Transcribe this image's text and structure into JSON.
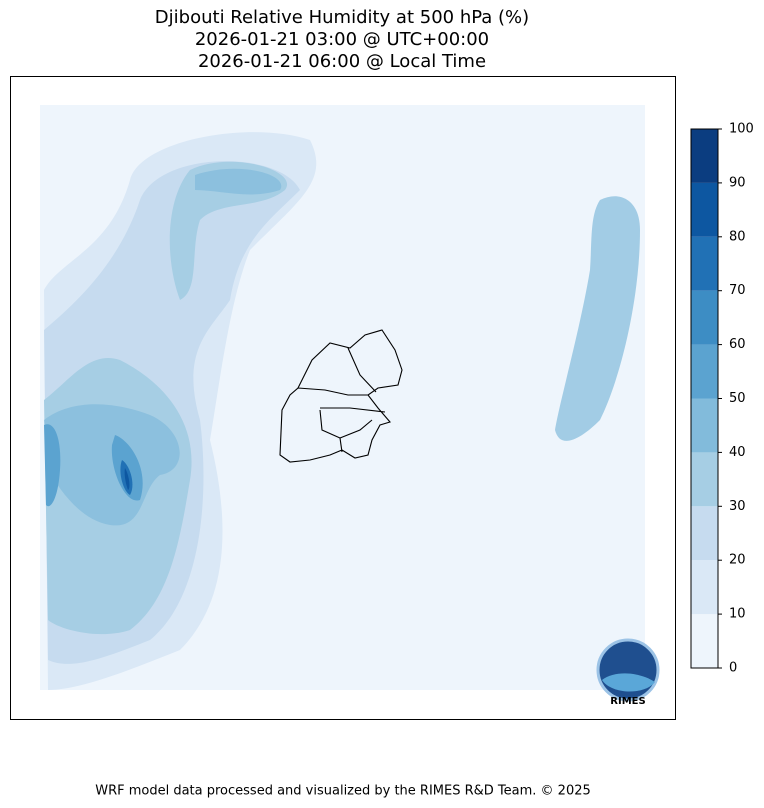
{
  "chart_data": {
    "type": "contour",
    "title": [
      "Djibouti Relative Humidity at 500 hPa (%)",
      "2026-01-21 03:00 @ UTC+00:00",
      "2026-01-21 06:00 @ Local Time"
    ],
    "colorbar": {
      "ticks": [
        0,
        10,
        20,
        30,
        40,
        50,
        60,
        70,
        80,
        90,
        100
      ],
      "colors": [
        "#eef5fc",
        "#dae8f6",
        "#c6dbef",
        "#a6cee4",
        "#82bbdb",
        "#5ba3d0",
        "#3d8dc4",
        "#2171b5",
        "#0d57a1",
        "#0b3d80"
      ]
    },
    "logo": "RIMES",
    "footer": "WRF model data processed and visualized by the RIMES R&D Team. © 2025"
  }
}
